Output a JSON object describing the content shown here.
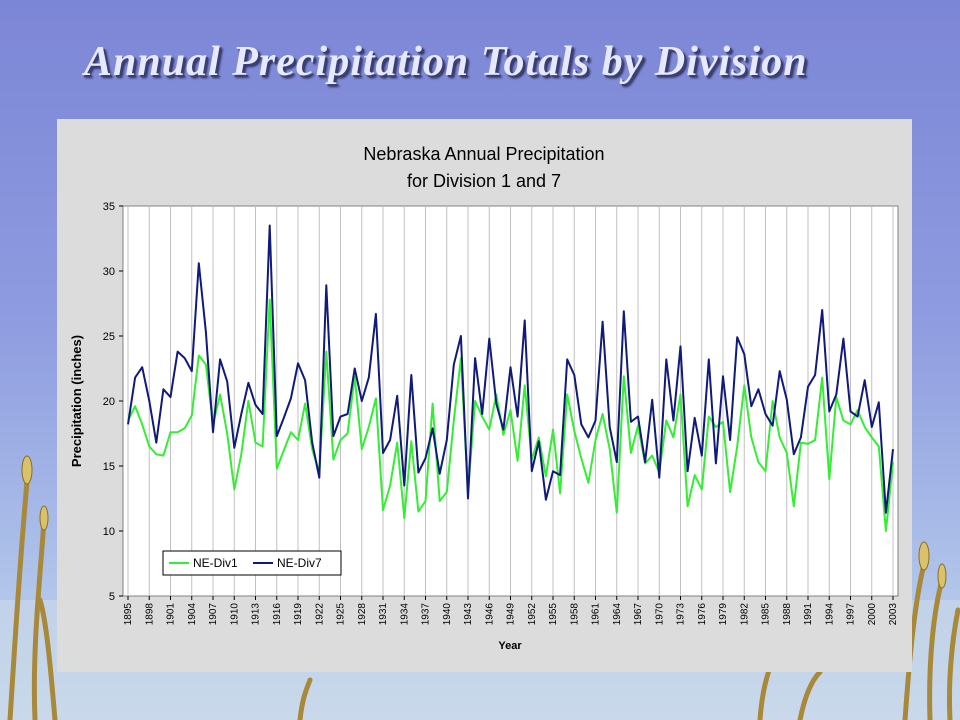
{
  "slide": {
    "title": "Annual Precipitation Totals by Division"
  },
  "colors": {
    "background_top": "#7c86d6",
    "title_text": "#e6e9ff",
    "chart_panel": "#dcdcdc",
    "plot_area": "#ffffff",
    "div1": "#33ee33",
    "div7": "#101a7a"
  },
  "chart_data": {
    "type": "line",
    "title_lines": [
      "Nebraska Annual Precipitation",
      "for Division 1 and 7"
    ],
    "xlabel": "Year",
    "ylabel": "Precipitation (inches)",
    "ylim": [
      5,
      35
    ],
    "yticks": [
      5,
      10,
      15,
      20,
      25,
      30,
      35
    ],
    "xticks": [
      1895,
      1898,
      1901,
      1904,
      1907,
      1910,
      1913,
      1916,
      1919,
      1922,
      1925,
      1928,
      1931,
      1934,
      1937,
      1940,
      1943,
      1946,
      1949,
      1952,
      1955,
      1958,
      1961,
      1964,
      1967,
      1970,
      1973,
      1976,
      1979,
      1982,
      1985,
      1988,
      1991,
      1994,
      1997,
      2000,
      2003
    ],
    "grid": "vertical",
    "legend_position": "bottom-left",
    "x_start": 1895,
    "series": [
      {
        "name": "NE-Div1",
        "color": "#33ee33",
        "values": [
          18.5,
          19.6,
          18.2,
          16.5,
          15.9,
          15.8,
          17.6,
          17.6,
          17.9,
          18.9,
          23.5,
          22.8,
          18.2,
          20.5,
          17.5,
          13.2,
          15.9,
          20.0,
          16.8,
          16.5,
          27.8,
          14.8,
          16.2,
          17.6,
          17.0,
          19.8,
          16.3,
          14.5,
          23.8,
          15.5,
          17.0,
          17.5,
          21.9,
          16.3,
          18.0,
          20.2,
          11.6,
          13.5,
          16.8,
          11.0,
          16.9,
          11.5,
          12.3,
          19.8,
          12.3,
          13.0,
          18.5,
          23.3,
          13.0,
          20.0,
          18.8,
          17.8,
          20.5,
          17.4,
          19.3,
          15.4,
          21.2,
          15.5,
          17.2,
          14.2,
          17.8,
          12.9,
          20.5,
          17.7,
          15.6,
          13.7,
          17.0,
          19.0,
          16.3,
          11.4,
          21.9,
          16.0,
          18.1,
          15.2,
          15.8,
          14.5,
          18.5,
          17.2,
          20.5,
          11.9,
          14.3,
          13.2,
          18.8,
          18.0,
          18.4,
          13.0,
          16.5,
          21.2,
          17.2,
          15.3,
          14.6,
          20.0,
          17.2,
          16.0,
          11.9,
          16.8,
          16.7,
          17.0,
          21.8,
          14.0,
          20.3,
          18.5,
          18.2,
          19.3,
          18.0,
          17.2,
          16.5,
          10.0,
          15.3
        ]
      },
      {
        "name": "NE-Div7",
        "color": "#101a7a",
        "values": [
          18.2,
          21.8,
          22.6,
          20.0,
          16.8,
          20.9,
          20.3,
          23.8,
          23.3,
          22.3,
          30.6,
          25.3,
          17.6,
          23.2,
          21.5,
          16.4,
          19.0,
          21.4,
          19.7,
          19.0,
          33.5,
          17.3,
          18.7,
          20.2,
          22.9,
          21.6,
          16.8,
          14.1,
          28.9,
          17.3,
          18.8,
          19.0,
          22.5,
          20.0,
          21.8,
          26.7,
          16.0,
          17.0,
          20.4,
          13.5,
          22.0,
          14.5,
          15.6,
          17.9,
          14.4,
          17.0,
          22.8,
          25.0,
          12.5,
          23.3,
          19.0,
          24.8,
          19.8,
          17.8,
          22.6,
          18.8,
          26.2,
          14.6,
          16.9,
          12.4,
          14.6,
          14.3,
          23.2,
          22.0,
          18.2,
          17.2,
          18.5,
          26.1,
          18.0,
          15.3,
          26.9,
          18.4,
          18.8,
          15.3,
          20.1,
          14.1,
          23.2,
          18.5,
          24.2,
          14.6,
          18.7,
          15.8,
          23.2,
          15.2,
          21.9,
          17.0,
          24.9,
          23.6,
          19.6,
          20.9,
          19.0,
          18.1,
          22.3,
          20.1,
          15.9,
          17.2,
          21.1,
          22.0,
          27.0,
          19.2,
          20.5,
          24.8,
          19.2,
          18.8,
          21.6,
          18.0,
          19.9,
          11.4,
          16.3
        ]
      }
    ]
  }
}
